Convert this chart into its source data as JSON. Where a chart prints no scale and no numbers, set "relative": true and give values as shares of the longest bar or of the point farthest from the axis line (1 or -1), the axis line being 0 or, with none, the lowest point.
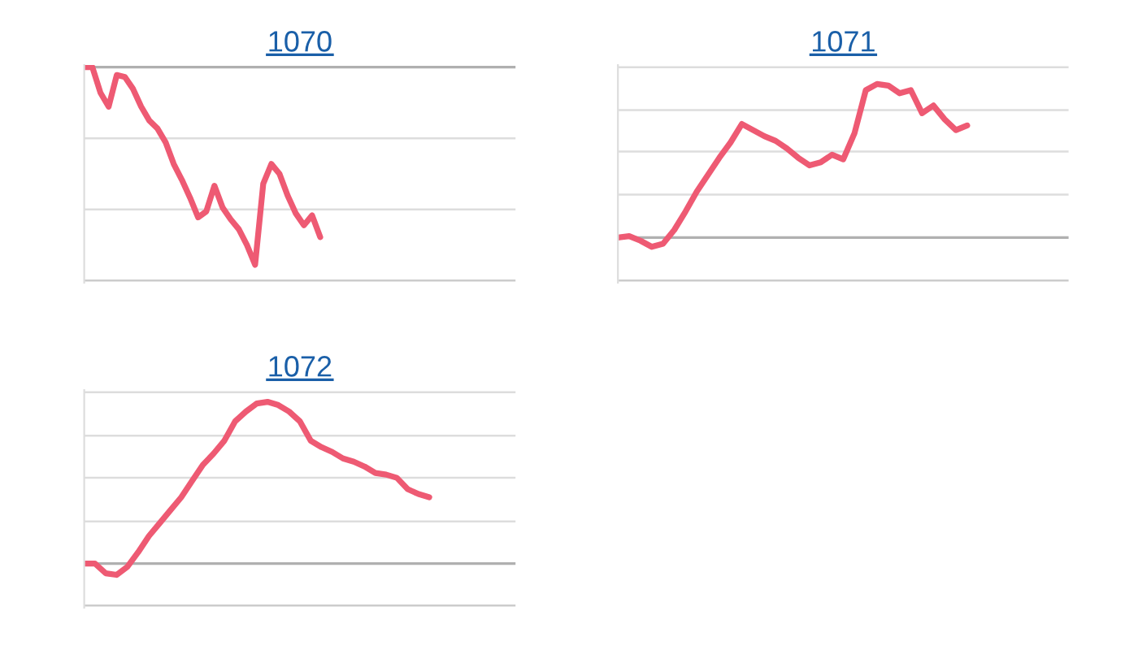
{
  "chart_data": [
    {
      "type": "line",
      "title": "1070",
      "relative": true,
      "tick_labels": false,
      "ref_lines": [
        {
          "axis": "y",
          "value": -0.36,
          "color": "#dddddd"
        },
        {
          "axis": "y",
          "value": -0.72,
          "color": "#dddddd"
        },
        {
          "axis": "y",
          "value": -1.08,
          "color": "#cccccc"
        }
      ],
      "categories": [
        null,
        null,
        null,
        null,
        null,
        null,
        null,
        null,
        null,
        null,
        null,
        null,
        null,
        null,
        null,
        null,
        null,
        null,
        null,
        null,
        null,
        null,
        null,
        null,
        null,
        null,
        null,
        null,
        null,
        null,
        null,
        null,
        null,
        null,
        null,
        null,
        null,
        null,
        null,
        null,
        null,
        null,
        null,
        null,
        null,
        null,
        null,
        null,
        null,
        null,
        null,
        null,
        null,
        null
      ],
      "series": [
        {
          "color": "#ee5a73",
          "values": [
            0,
            0,
            -0.13,
            -0.2,
            -0.04,
            -0.05,
            -0.11,
            -0.2,
            -0.27,
            -0.31,
            -0.38,
            -0.49,
            -0.57,
            -0.66,
            -0.76,
            -0.73,
            -0.6,
            -0.71,
            -0.77,
            -0.82,
            -0.9,
            -1,
            -0.59,
            -0.49,
            -0.54,
            -0.65,
            -0.74,
            -0.8,
            -0.75,
            -0.86,
            null,
            null,
            null,
            null,
            null,
            null,
            null,
            null,
            null,
            null,
            null,
            null,
            null,
            null,
            null,
            null,
            null,
            null,
            null,
            null,
            null,
            null,
            null,
            null
          ]
        }
      ]
    },
    {
      "type": "line",
      "title": "1071",
      "relative": true,
      "tick_labels": false,
      "ref_lines": [
        {
          "axis": "y",
          "value": 1.11,
          "color": "#dddddd"
        },
        {
          "axis": "y",
          "value": 0.83,
          "color": "#dddddd"
        },
        {
          "axis": "y",
          "value": 0.56,
          "color": "#dddddd"
        },
        {
          "axis": "y",
          "value": 0.28,
          "color": "#dddddd"
        },
        {
          "axis": "y",
          "value": -0.28,
          "color": "#cccccc"
        }
      ],
      "categories": [
        null,
        null,
        null,
        null,
        null,
        null,
        null,
        null,
        null,
        null,
        null,
        null,
        null,
        null,
        null,
        null,
        null,
        null,
        null,
        null,
        null,
        null,
        null,
        null,
        null,
        null,
        null,
        null,
        null,
        null,
        null,
        null,
        null,
        null,
        null,
        null,
        null,
        null,
        null,
        null,
        null
      ],
      "series": [
        {
          "color": "#ee5a73",
          "values": [
            0,
            0.01,
            -0.02,
            -0.06,
            -0.04,
            0.05,
            0.17,
            0.3,
            0.41,
            0.52,
            0.62,
            0.74,
            0.7,
            0.66,
            0.63,
            0.58,
            0.52,
            0.47,
            0.49,
            0.54,
            0.51,
            0.68,
            0.96,
            1,
            0.99,
            0.94,
            0.96,
            0.81,
            0.86,
            0.77,
            0.7,
            0.73,
            null,
            null,
            null,
            null,
            null,
            null,
            null,
            null,
            null
          ]
        }
      ]
    },
    {
      "type": "line",
      "title": "1072",
      "relative": true,
      "tick_labels": false,
      "ref_lines": [
        {
          "axis": "y",
          "value": 1.06,
          "color": "#dddddd"
        },
        {
          "axis": "y",
          "value": 0.79,
          "color": "#dddddd"
        },
        {
          "axis": "y",
          "value": 0.53,
          "color": "#dddddd"
        },
        {
          "axis": "y",
          "value": 0.26,
          "color": "#dddddd"
        },
        {
          "axis": "y",
          "value": -0.26,
          "color": "#cccccc"
        }
      ],
      "categories": [
        null,
        null,
        null,
        null,
        null,
        null,
        null,
        null,
        null,
        null,
        null,
        null,
        null,
        null,
        null,
        null,
        null,
        null,
        null,
        null,
        null,
        null,
        null,
        null,
        null,
        null,
        null,
        null,
        null,
        null,
        null,
        null,
        null,
        null,
        null,
        null,
        null,
        null,
        null,
        null,
        null
      ],
      "series": [
        {
          "color": "#ee5a73",
          "values": [
            0,
            0,
            -0.06,
            -0.07,
            -0.02,
            0.07,
            0.17,
            0.25,
            0.33,
            0.41,
            0.51,
            0.61,
            0.68,
            0.76,
            0.88,
            0.94,
            0.99,
            1,
            0.98,
            0.94,
            0.88,
            0.76,
            0.72,
            0.69,
            0.65,
            0.63,
            0.6,
            0.56,
            0.55,
            0.53,
            0.46,
            0.43,
            0.41,
            null,
            null,
            null,
            null,
            null,
            null,
            null,
            null
          ]
        }
      ]
    }
  ]
}
